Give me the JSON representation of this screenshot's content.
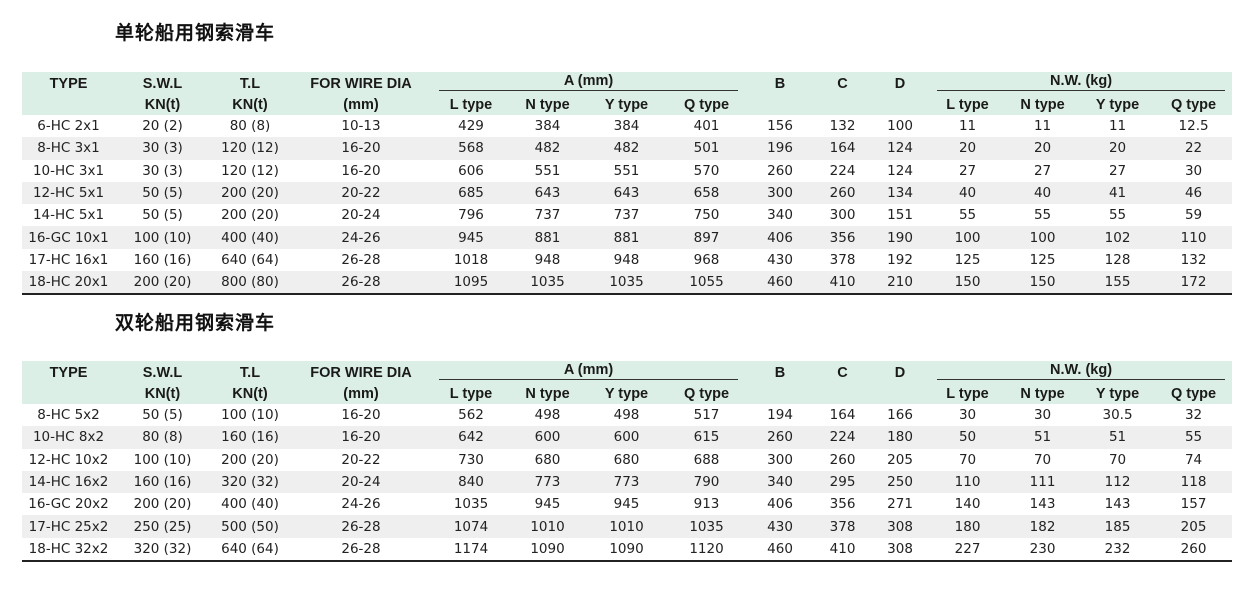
{
  "headers": {
    "type": "TYPE",
    "swl": [
      "S.W.L",
      "KN(t)"
    ],
    "tl": [
      "T.L",
      "KN(t)"
    ],
    "wire": [
      "FOR WIRE DIA",
      "(mm)"
    ],
    "a_group": "A (mm)",
    "b": "B",
    "c": "C",
    "d": "D",
    "nw_group": "N.W. (kg)",
    "subtypes": [
      "L type",
      "N type",
      "Y type",
      "Q type"
    ]
  },
  "tables": [
    {
      "title": "单轮船用钢索滑车",
      "rows": [
        [
          "6-HC 2x1",
          "20 (2)",
          "80 (8)",
          "10-13",
          "429",
          "384",
          "384",
          "401",
          "156",
          "132",
          "100",
          "11",
          "11",
          "11",
          "12.5"
        ],
        [
          "8-HC 3x1",
          "30 (3)",
          "120 (12)",
          "16-20",
          "568",
          "482",
          "482",
          "501",
          "196",
          "164",
          "124",
          "20",
          "20",
          "20",
          "22"
        ],
        [
          "10-HC 3x1",
          "30 (3)",
          "120 (12)",
          "16-20",
          "606",
          "551",
          "551",
          "570",
          "260",
          "224",
          "124",
          "27",
          "27",
          "27",
          "30"
        ],
        [
          "12-HC 5x1",
          "50 (5)",
          "200 (20)",
          "20-22",
          "685",
          "643",
          "643",
          "658",
          "300",
          "260",
          "134",
          "40",
          "40",
          "41",
          "46"
        ],
        [
          "14-HC  5x1",
          "50 (5)",
          "200 (20)",
          "20-24",
          "796",
          "737",
          "737",
          "750",
          "340",
          "300",
          "151",
          "55",
          "55",
          "55",
          "59"
        ],
        [
          "16-GC 10x1",
          "100 (10)",
          "400 (40)",
          "24-26",
          "945",
          "881",
          "881",
          "897",
          "406",
          "356",
          "190",
          "100",
          "100",
          "102",
          "110"
        ],
        [
          "17-HC 16x1",
          "160 (16)",
          "640 (64)",
          "26-28",
          "1018",
          "948",
          "948",
          "968",
          "430",
          "378",
          "192",
          "125",
          "125",
          "128",
          "132"
        ],
        [
          "18-HC 20x1",
          "200 (20)",
          "800 (80)",
          "26-28",
          "1095",
          "1035",
          "1035",
          "1055",
          "460",
          "410",
          "210",
          "150",
          "150",
          "155",
          "172"
        ]
      ]
    },
    {
      "title": "双轮船用钢索滑车",
      "rows": [
        [
          "8-HC 5x2",
          "50 (5)",
          "100 (10)",
          "16-20",
          "562",
          "498",
          "498",
          "517",
          "194",
          "164",
          "166",
          "30",
          "30",
          "30.5",
          "32"
        ],
        [
          "10-HC 8x2",
          "80 (8)",
          "160 (16)",
          "16-20",
          "642",
          "600",
          "600",
          "615",
          "260",
          "224",
          "180",
          "50",
          "51",
          "51",
          "55"
        ],
        [
          "12-HC 10x2",
          "100 (10)",
          "200 (20)",
          "20-22",
          "730",
          "680",
          "680",
          "688",
          "300",
          "260",
          "205",
          "70",
          "70",
          "70",
          "74"
        ],
        [
          "14-HC  16x2",
          "160 (16)",
          "320 (32)",
          "20-24",
          "840",
          "773",
          "773",
          "790",
          "340",
          "295",
          "250",
          "110",
          "111",
          "112",
          "118"
        ],
        [
          "16-GC 20x2",
          "200 (20)",
          "400 (40)",
          "24-26",
          "1035",
          "945",
          "945",
          "913",
          "406",
          "356",
          "271",
          "140",
          "143",
          "143",
          "157"
        ],
        [
          "17-HC 25x2",
          "250 (25)",
          "500 (50)",
          "26-28",
          "1074",
          "1010",
          "1010",
          "1035",
          "430",
          "378",
          "308",
          "180",
          "182",
          "185",
          "205"
        ],
        [
          "18-HC 32x2",
          "320 (32)",
          "640 (64)",
          "26-28",
          "1174",
          "1090",
          "1090",
          "1120",
          "460",
          "410",
          "308",
          "227",
          "230",
          "232",
          "260"
        ]
      ]
    }
  ]
}
